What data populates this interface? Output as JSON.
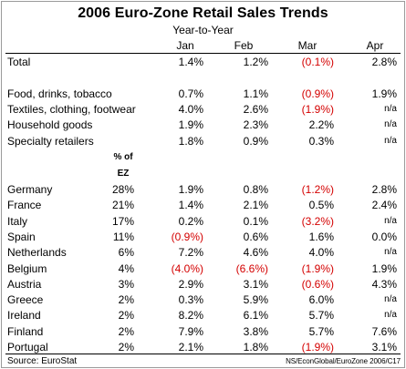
{
  "title": "2006 Euro-Zone Retail Sales Trends",
  "subtitle": "Year-to-Year",
  "months": [
    "Jan",
    "Feb",
    "Mar",
    "Apr"
  ],
  "ez_header": [
    "% of",
    "EZ"
  ],
  "sector_rows": [
    {
      "label": "Total",
      "values": [
        "1.4%",
        "1.2%",
        "(0.1%)",
        "2.8%"
      ]
    },
    {
      "label": "Food, drinks, tobacco",
      "values": [
        "0.7%",
        "1.1%",
        "(0.9%)",
        "1.9%"
      ]
    },
    {
      "label": "Textiles, clothing, footwear",
      "values": [
        "4.0%",
        "2.6%",
        "(1.9%)",
        "n/a"
      ]
    },
    {
      "label": "Household goods",
      "values": [
        "1.9%",
        "2.3%",
        "2.2%",
        "n/a"
      ]
    },
    {
      "label": "Specialty retailers",
      "values": [
        "1.8%",
        "0.9%",
        "0.3%",
        "n/a"
      ]
    }
  ],
  "country_rows": [
    {
      "label": "Germany",
      "ez": "28%",
      "values": [
        "1.9%",
        "0.8%",
        "(1.2%)",
        "2.8%"
      ]
    },
    {
      "label": "France",
      "ez": "21%",
      "values": [
        "1.4%",
        "2.1%",
        "0.5%",
        "2.4%"
      ]
    },
    {
      "label": "Italy",
      "ez": "17%",
      "values": [
        "0.2%",
        "0.1%",
        "(3.2%)",
        "n/a"
      ]
    },
    {
      "label": "Spain",
      "ez": "11%",
      "values": [
        "(0.9%)",
        "0.6%",
        "1.6%",
        "0.0%"
      ]
    },
    {
      "label": "Netherlands",
      "ez": "6%",
      "values": [
        "7.2%",
        "4.6%",
        "4.0%",
        "n/a"
      ]
    },
    {
      "label": "Belgium",
      "ez": "4%",
      "values": [
        "(4.0%)",
        "(6.6%)",
        "(1.9%)",
        "1.9%"
      ]
    },
    {
      "label": "Austria",
      "ez": "3%",
      "values": [
        "2.9%",
        "3.1%",
        "(0.6%)",
        "4.3%"
      ]
    },
    {
      "label": "Greece",
      "ez": "2%",
      "values": [
        "0.3%",
        "5.9%",
        "6.0%",
        "n/a"
      ]
    },
    {
      "label": "Ireland",
      "ez": "2%",
      "values": [
        "8.2%",
        "6.1%",
        "5.7%",
        "n/a"
      ]
    },
    {
      "label": "Finland",
      "ez": "2%",
      "values": [
        "7.9%",
        "3.8%",
        "5.7%",
        "7.6%"
      ]
    },
    {
      "label": "Portugal",
      "ez": "2%",
      "values": [
        "2.1%",
        "1.8%",
        "(1.9%)",
        "3.1%"
      ]
    }
  ],
  "footer": {
    "source": "Source:  EuroStat",
    "credit": "NS/EconGlobal/EuroZone 2006/C17"
  },
  "colors": {
    "negative": "#d40000",
    "text": "#000000",
    "rule": "#000000"
  }
}
